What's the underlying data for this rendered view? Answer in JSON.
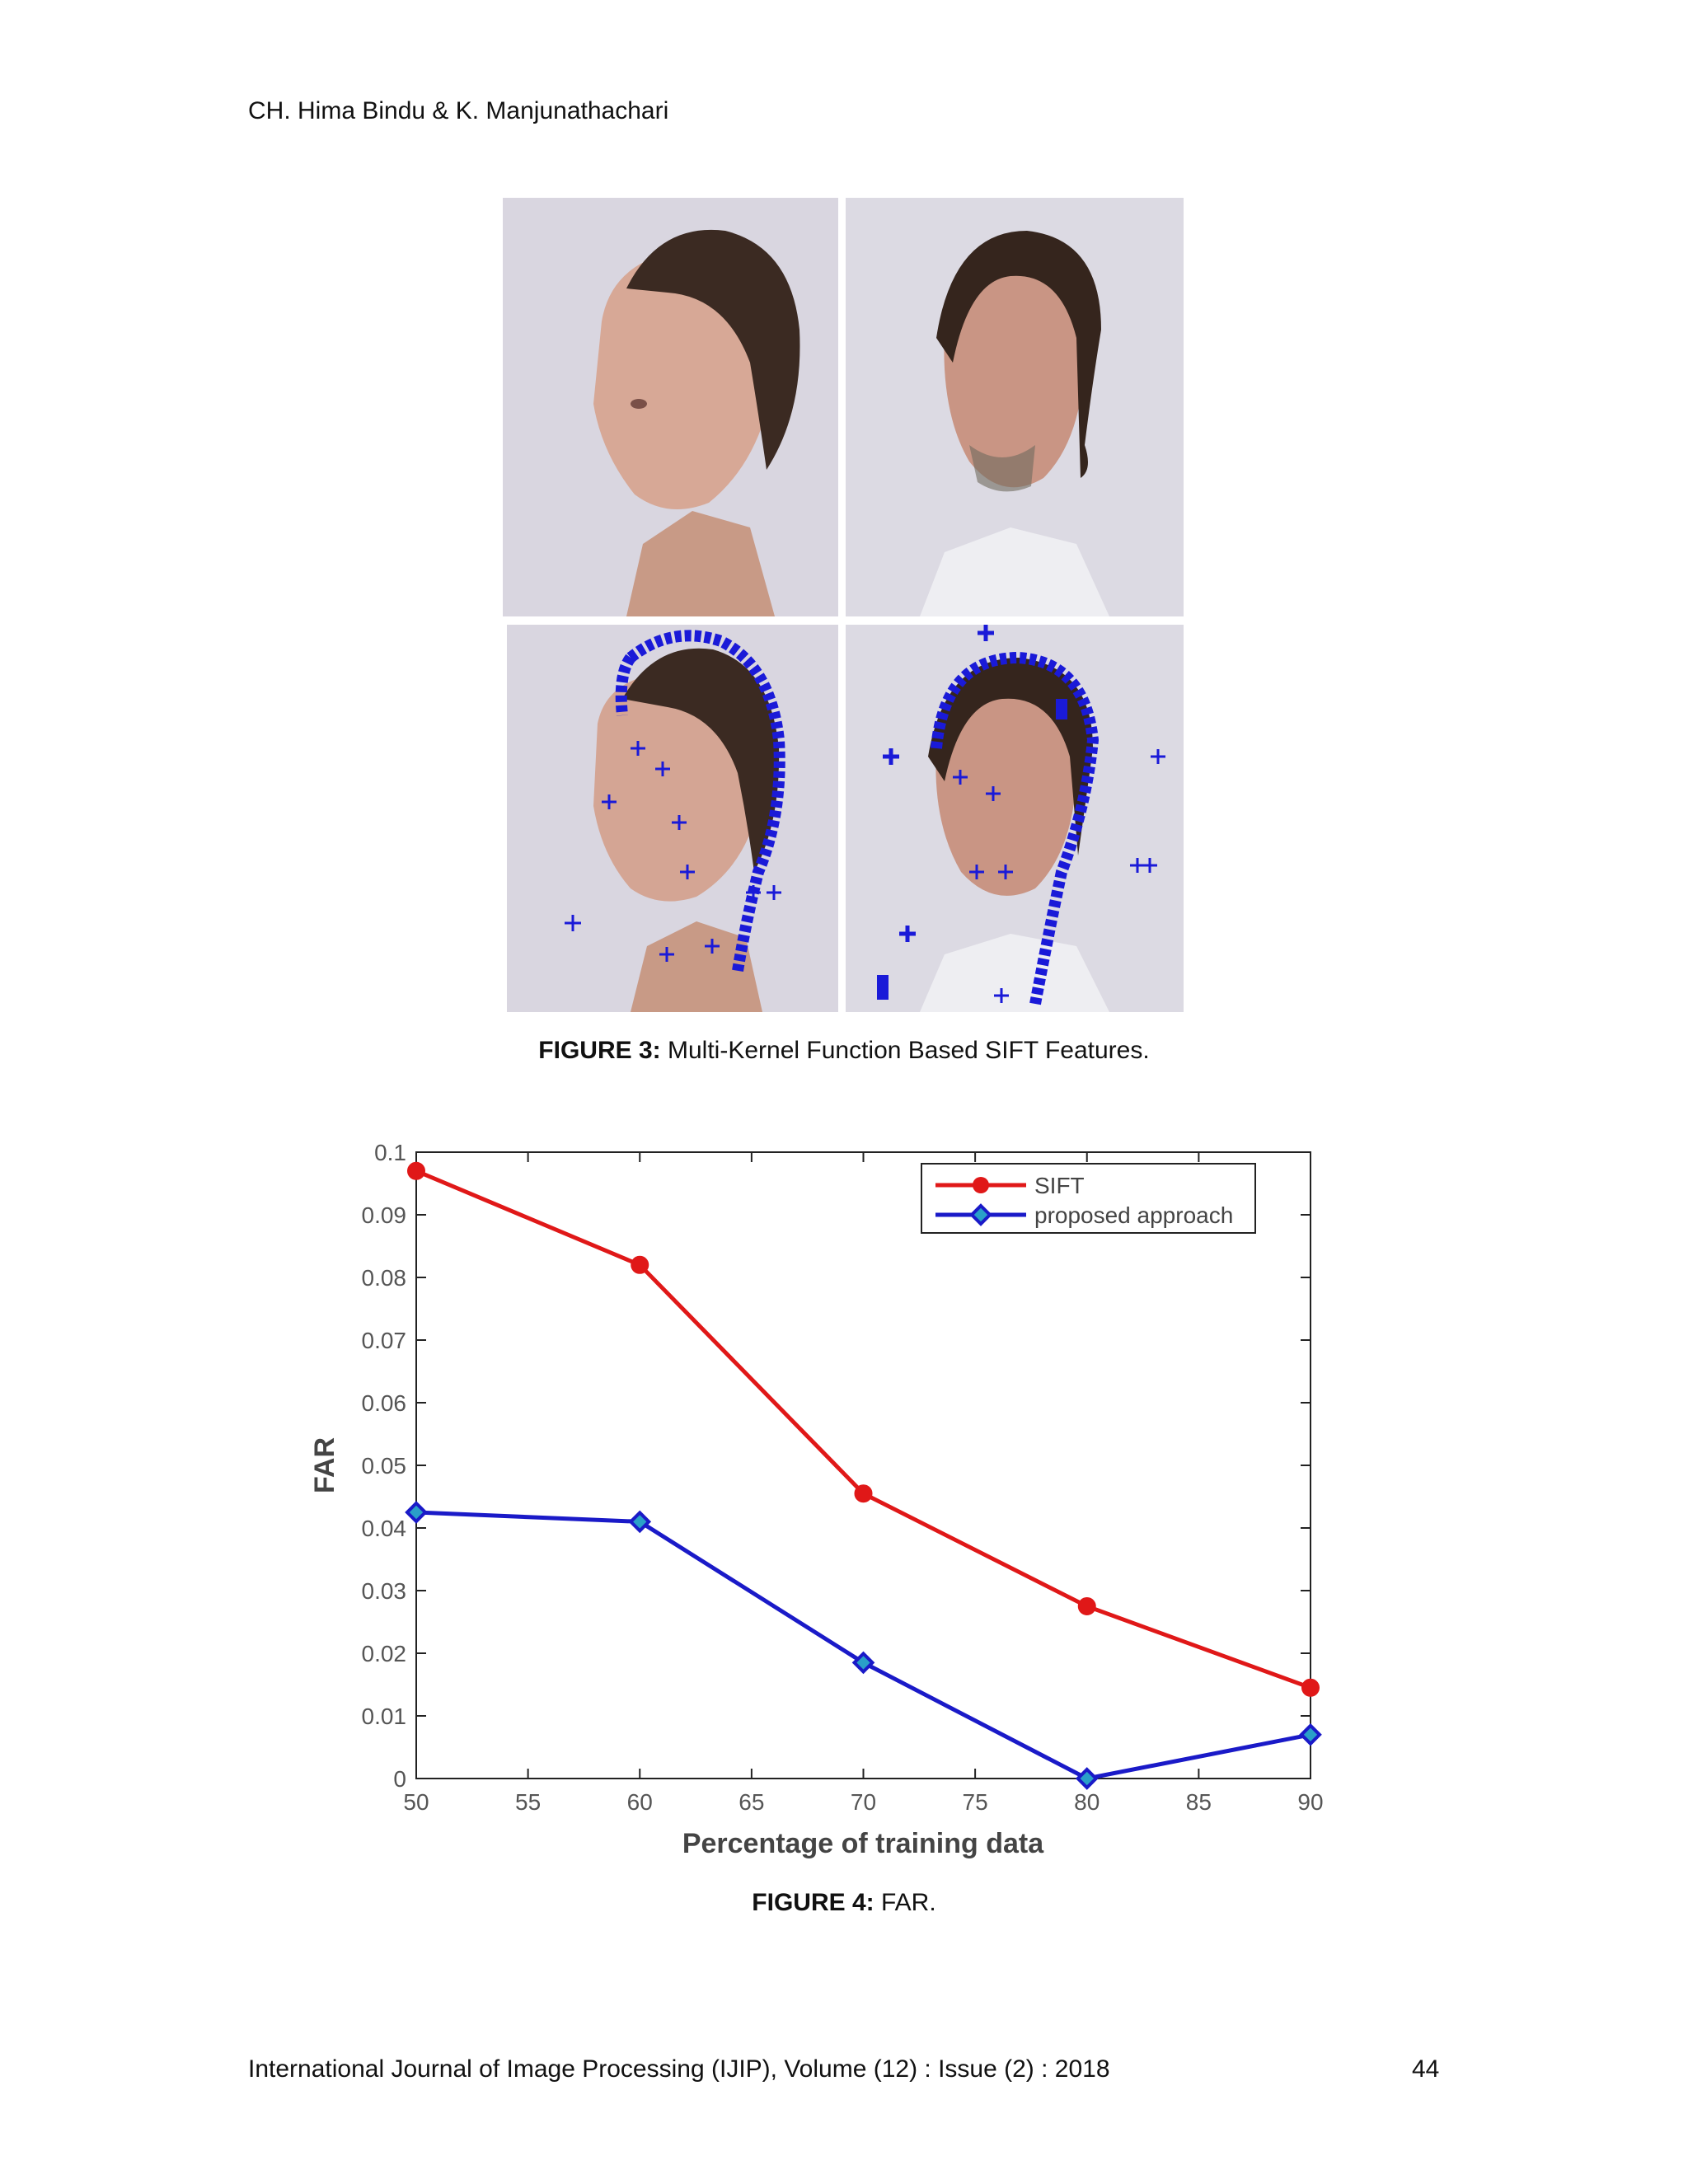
{
  "header": {
    "running_head": "CH. Hima Bindu & K. Manjunathachari"
  },
  "figure3": {
    "caption_label": "FIGURE 3:",
    "caption_text": "Multi-Kernel Function Based SIFT Features.",
    "panels": [
      "face-photo-1",
      "face-photo-2",
      "face-sift-1",
      "face-sift-2"
    ],
    "marker_color": "#1a1ad8"
  },
  "figure4": {
    "caption_label": "FIGURE 4:",
    "caption_text": "FAR."
  },
  "chart_data": {
    "type": "line",
    "title": "",
    "xlabel": "Percentage of training data",
    "ylabel": "FAR",
    "x": [
      50,
      60,
      70,
      80,
      90
    ],
    "xlim": [
      50,
      90
    ],
    "ylim": [
      0,
      0.1
    ],
    "xticks": [
      "50",
      "55",
      "60",
      "65",
      "70",
      "75",
      "80",
      "85",
      "90"
    ],
    "yticks": [
      "0",
      "0.01",
      "0.02",
      "0.03",
      "0.04",
      "0.05",
      "0.06",
      "0.07",
      "0.08",
      "0.09",
      "0.1"
    ],
    "grid": false,
    "legend_position": "top-right",
    "series": [
      {
        "name": "SIFT",
        "values": [
          0.097,
          0.082,
          0.0455,
          0.0275,
          0.0145
        ],
        "color": "#e01818",
        "marker": "circle"
      },
      {
        "name": "proposed approach",
        "values": [
          0.0425,
          0.041,
          0.0185,
          0.0,
          0.007
        ],
        "color": "#1a1ac8",
        "marker": "diamond"
      }
    ]
  },
  "footer": {
    "journal": "International Journal of Image Processing (IJIP), Volume (12) : Issue (2) : 2018",
    "page_number": "44"
  }
}
